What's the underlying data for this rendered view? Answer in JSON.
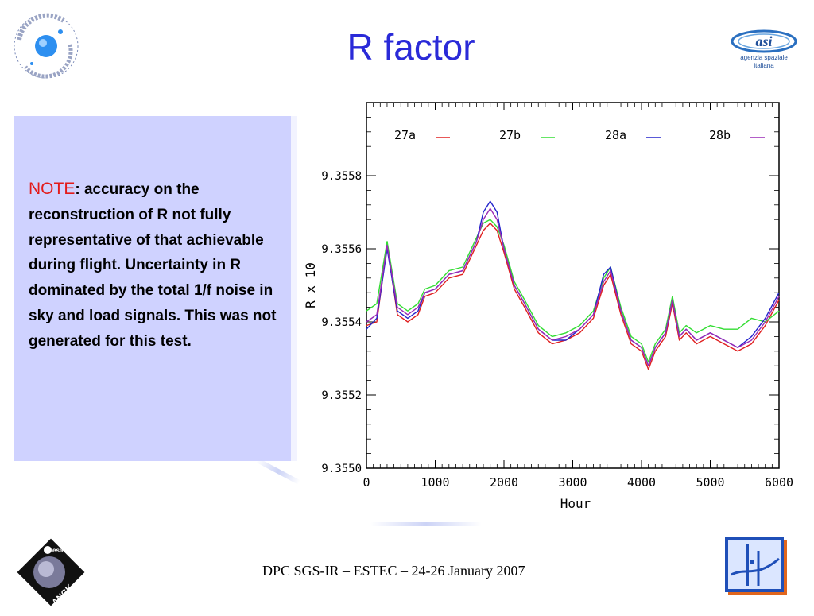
{
  "slide": {
    "title": "R factor",
    "footer": "DPC SGS-IR – ESTEC – 24-26 January 2007"
  },
  "note": {
    "label": "NOTE",
    "text": ": accuracy on the reconstruction of  R  not fully representative of that achievable during flight. Uncertainty in R dominated by the total 1/f noise in sky and load signals. This was not generated for this test."
  },
  "logos": {
    "inaf_text": "ISTITUTO NAZIONALE DI ASTROFISICA · INAF",
    "asi_text_1": "agenzia spaziale",
    "asi_text_2": "italiana",
    "planck_text": "PLANCK",
    "esa_text": "esa"
  },
  "colors": {
    "title": "#2a2ad8",
    "note_label": "#e31b1b",
    "note_box": "#cfd2ff"
  },
  "chart_data": {
    "type": "line",
    "title": "",
    "xlabel": "Hour",
    "ylabel": "R x 10",
    "xlim": [
      0,
      6000
    ],
    "ylim": [
      9.355,
      9.356
    ],
    "x_ticks": [
      "0",
      "1000",
      "2000",
      "3000",
      "4000",
      "5000",
      "6000"
    ],
    "y_ticks": [
      "9.3550",
      "9.3552",
      "9.3554",
      "9.3556",
      "9.3558"
    ],
    "legend_position": "top",
    "x": [
      0,
      150,
      300,
      450,
      600,
      750,
      850,
      1000,
      1200,
      1400,
      1600,
      1700,
      1800,
      1900,
      2000,
      2150,
      2300,
      2500,
      2700,
      2900,
      3100,
      3300,
      3450,
      3550,
      3700,
      3850,
      4000,
      4100,
      4200,
      4350,
      4450,
      4550,
      4650,
      4800,
      5000,
      5200,
      5400,
      5600,
      5800,
      6000
    ],
    "series": [
      {
        "name": "27a",
        "color": "#e02020",
        "values": [
          9.35539,
          9.3554,
          9.35561,
          9.35542,
          9.3554,
          9.35542,
          9.35547,
          9.35548,
          9.35552,
          9.35553,
          9.35561,
          9.35565,
          9.35567,
          9.35565,
          9.35559,
          9.35549,
          9.35544,
          9.35537,
          9.35534,
          9.35535,
          9.35537,
          9.35541,
          9.3555,
          9.35553,
          9.35542,
          9.35534,
          9.35532,
          9.35527,
          9.35532,
          9.35536,
          9.35545,
          9.35535,
          9.35537,
          9.35534,
          9.35536,
          9.35534,
          9.35532,
          9.35534,
          9.35539,
          9.35546
        ]
      },
      {
        "name": "27b",
        "color": "#33dd33",
        "values": [
          9.35543,
          9.35545,
          9.35562,
          9.35545,
          9.35543,
          9.35545,
          9.35549,
          9.3555,
          9.35554,
          9.35555,
          9.35563,
          9.35567,
          9.35568,
          9.35566,
          9.35561,
          9.35551,
          9.35546,
          9.35539,
          9.35536,
          9.35537,
          9.35539,
          9.35543,
          9.35552,
          9.35555,
          9.35544,
          9.35536,
          9.35534,
          9.35529,
          9.35534,
          9.35538,
          9.35547,
          9.35537,
          9.35539,
          9.35537,
          9.35539,
          9.35538,
          9.35538,
          9.35541,
          9.3554,
          9.35543
        ]
      },
      {
        "name": "28a",
        "color": "#2424cc",
        "values": [
          9.35538,
          9.35541,
          9.3556,
          9.35543,
          9.35541,
          9.35543,
          9.35548,
          9.35549,
          9.35553,
          9.35554,
          9.35562,
          9.3557,
          9.35573,
          9.3557,
          9.3556,
          9.3555,
          9.35545,
          9.35538,
          9.35535,
          9.35535,
          9.35538,
          9.35542,
          9.35553,
          9.35555,
          9.35543,
          9.35535,
          9.35533,
          9.35528,
          9.35533,
          9.35537,
          9.35546,
          9.35536,
          9.35538,
          9.35535,
          9.35537,
          9.35535,
          9.35533,
          9.35536,
          9.35541,
          9.35548
        ]
      },
      {
        "name": "28b",
        "color": "#9a2ab5",
        "values": [
          9.3554,
          9.35542,
          9.35561,
          9.35544,
          9.35542,
          9.35544,
          9.35548,
          9.35549,
          9.35553,
          9.35554,
          9.35562,
          9.35568,
          9.35571,
          9.35568,
          9.3556,
          9.3555,
          9.35545,
          9.35538,
          9.35535,
          9.35536,
          9.35538,
          9.35542,
          9.35551,
          9.35554,
          9.35543,
          9.35535,
          9.35533,
          9.35528,
          9.35533,
          9.35537,
          9.35546,
          9.35536,
          9.35538,
          9.35535,
          9.35537,
          9.35535,
          9.35533,
          9.35535,
          9.3554,
          9.35547
        ]
      }
    ]
  }
}
